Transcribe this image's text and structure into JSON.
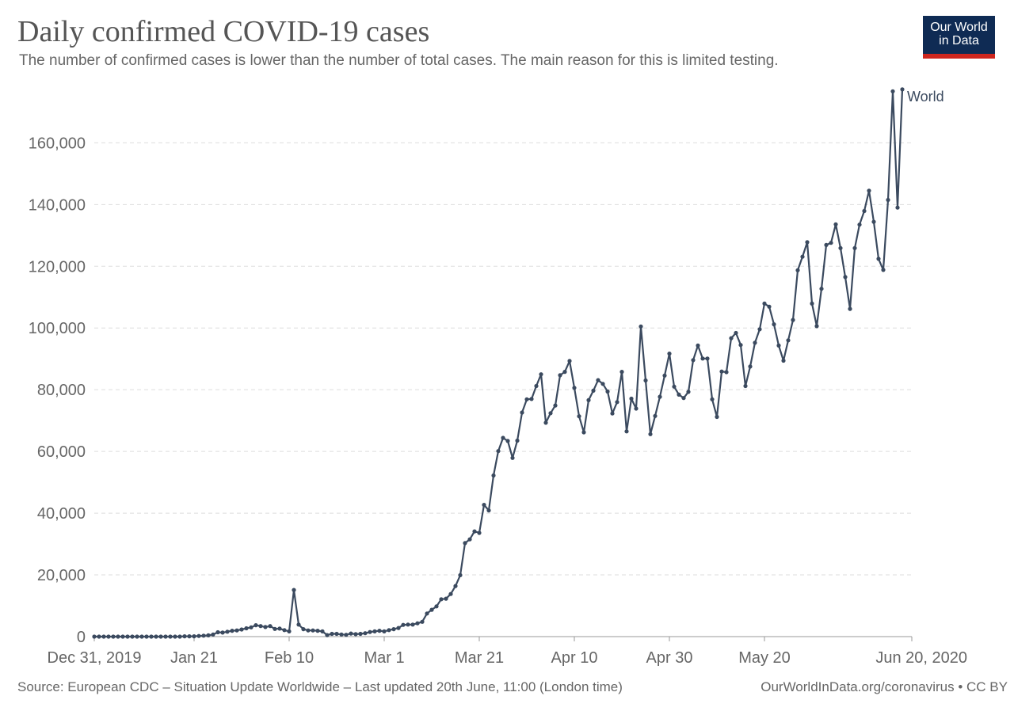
{
  "header": {
    "title": "Daily confirmed COVID-19 cases",
    "subtitle": "The number of confirmed cases is lower than the number of total cases. The main reason for this is limited testing."
  },
  "logo": {
    "line1": "Our World",
    "line2": "in Data",
    "background_color": "#0f2b54",
    "accent_color": "#ce261e"
  },
  "footer": {
    "source": "Source: European CDC – Situation Update Worldwide – Last updated 20th June, 11:00 (London time)",
    "url": "OurWorldInData.org/coronavirus • CC BY"
  },
  "colors": {
    "series": "#3b4a5f",
    "grid": "#dddddd",
    "axis_text": "#666666"
  },
  "chart_data": {
    "type": "line",
    "title": "Daily confirmed COVID-19 cases",
    "subtitle": "The number of confirmed cases is lower than the number of total cases. The main reason for this is limited testing.",
    "x_start_date": "2019-12-31",
    "x_end_date": "2020-06-20",
    "x_ticks": [
      {
        "date": "2019-12-31",
        "label": "Dec 31, 2019"
      },
      {
        "date": "2020-01-21",
        "label": "Jan 21"
      },
      {
        "date": "2020-02-10",
        "label": "Feb 10"
      },
      {
        "date": "2020-03-01",
        "label": "Mar 1"
      },
      {
        "date": "2020-03-21",
        "label": "Mar 21"
      },
      {
        "date": "2020-04-10",
        "label": "Apr 10"
      },
      {
        "date": "2020-04-30",
        "label": "Apr 30"
      },
      {
        "date": "2020-05-20",
        "label": "May 20"
      },
      {
        "date": "2020-06-20",
        "label": "Jun 20, 2020"
      }
    ],
    "y_ticks": [
      0,
      20000,
      40000,
      60000,
      80000,
      100000,
      120000,
      140000,
      160000
    ],
    "y_tick_labels": [
      "0",
      "20,000",
      "40,000",
      "60,000",
      "80,000",
      "100,000",
      "120,000",
      "140,000",
      "160,000"
    ],
    "ylim": [
      0,
      176000
    ],
    "grid": true,
    "legend": "end-of-line label",
    "series": [
      {
        "name": "World",
        "values": [
          {
            "date": "2019-12-31",
            "value": 0
          },
          {
            "date": "2020-01-01",
            "value": 0
          },
          {
            "date": "2020-01-02",
            "value": 0
          },
          {
            "date": "2020-01-03",
            "value": 0
          },
          {
            "date": "2020-01-04",
            "value": 0
          },
          {
            "date": "2020-01-05",
            "value": 0
          },
          {
            "date": "2020-01-06",
            "value": 0
          },
          {
            "date": "2020-01-07",
            "value": 0
          },
          {
            "date": "2020-01-08",
            "value": 0
          },
          {
            "date": "2020-01-09",
            "value": 0
          },
          {
            "date": "2020-01-10",
            "value": 0
          },
          {
            "date": "2020-01-11",
            "value": 0
          },
          {
            "date": "2020-01-12",
            "value": 0
          },
          {
            "date": "2020-01-13",
            "value": 0
          },
          {
            "date": "2020-01-14",
            "value": 0
          },
          {
            "date": "2020-01-15",
            "value": 0
          },
          {
            "date": "2020-01-16",
            "value": 0
          },
          {
            "date": "2020-01-17",
            "value": 0
          },
          {
            "date": "2020-01-18",
            "value": 0
          },
          {
            "date": "2020-01-19",
            "value": 100
          },
          {
            "date": "2020-01-20",
            "value": 100
          },
          {
            "date": "2020-01-21",
            "value": 100
          },
          {
            "date": "2020-01-22",
            "value": 200
          },
          {
            "date": "2020-01-23",
            "value": 300
          },
          {
            "date": "2020-01-24",
            "value": 400
          },
          {
            "date": "2020-01-25",
            "value": 700
          },
          {
            "date": "2020-01-26",
            "value": 1400
          },
          {
            "date": "2020-01-27",
            "value": 1300
          },
          {
            "date": "2020-01-28",
            "value": 1600
          },
          {
            "date": "2020-01-29",
            "value": 1900
          },
          {
            "date": "2020-01-30",
            "value": 2000
          },
          {
            "date": "2020-01-31",
            "value": 2300
          },
          {
            "date": "2020-02-01",
            "value": 2700
          },
          {
            "date": "2020-02-02",
            "value": 3000
          },
          {
            "date": "2020-02-03",
            "value": 3700
          },
          {
            "date": "2020-02-04",
            "value": 3400
          },
          {
            "date": "2020-02-05",
            "value": 3100
          },
          {
            "date": "2020-02-06",
            "value": 3400
          },
          {
            "date": "2020-02-07",
            "value": 2500
          },
          {
            "date": "2020-02-08",
            "value": 2600
          },
          {
            "date": "2020-02-09",
            "value": 2100
          },
          {
            "date": "2020-02-10",
            "value": 1700
          },
          {
            "date": "2020-02-11",
            "value": 15100
          },
          {
            "date": "2020-02-12",
            "value": 3900
          },
          {
            "date": "2020-02-13",
            "value": 2400
          },
          {
            "date": "2020-02-14",
            "value": 2000
          },
          {
            "date": "2020-02-15",
            "value": 2000
          },
          {
            "date": "2020-02-16",
            "value": 1900
          },
          {
            "date": "2020-02-17",
            "value": 1700
          },
          {
            "date": "2020-02-18",
            "value": 500
          },
          {
            "date": "2020-02-19",
            "value": 900
          },
          {
            "date": "2020-02-20",
            "value": 900
          },
          {
            "date": "2020-02-21",
            "value": 700
          },
          {
            "date": "2020-02-22",
            "value": 600
          },
          {
            "date": "2020-02-23",
            "value": 1000
          },
          {
            "date": "2020-02-24",
            "value": 800
          },
          {
            "date": "2020-02-25",
            "value": 900
          },
          {
            "date": "2020-02-26",
            "value": 1100
          },
          {
            "date": "2020-02-27",
            "value": 1500
          },
          {
            "date": "2020-02-28",
            "value": 1700
          },
          {
            "date": "2020-02-29",
            "value": 1900
          },
          {
            "date": "2020-03-01",
            "value": 1700
          },
          {
            "date": "2020-03-02",
            "value": 2100
          },
          {
            "date": "2020-03-03",
            "value": 2400
          },
          {
            "date": "2020-03-04",
            "value": 2800
          },
          {
            "date": "2020-03-05",
            "value": 3800
          },
          {
            "date": "2020-03-06",
            "value": 3900
          },
          {
            "date": "2020-03-07",
            "value": 3900
          },
          {
            "date": "2020-03-08",
            "value": 4300
          },
          {
            "date": "2020-03-09",
            "value": 4800
          },
          {
            "date": "2020-03-10",
            "value": 7500
          },
          {
            "date": "2020-03-11",
            "value": 8700
          },
          {
            "date": "2020-03-12",
            "value": 9800
          },
          {
            "date": "2020-03-13",
            "value": 12100
          },
          {
            "date": "2020-03-14",
            "value": 12300
          },
          {
            "date": "2020-03-15",
            "value": 13800
          },
          {
            "date": "2020-03-16",
            "value": 16400
          },
          {
            "date": "2020-03-17",
            "value": 19900
          },
          {
            "date": "2020-03-18",
            "value": 30300
          },
          {
            "date": "2020-03-19",
            "value": 31500
          },
          {
            "date": "2020-03-20",
            "value": 34100
          },
          {
            "date": "2020-03-21",
            "value": 33600
          },
          {
            "date": "2020-03-22",
            "value": 42700
          },
          {
            "date": "2020-03-23",
            "value": 40900
          },
          {
            "date": "2020-03-24",
            "value": 52200
          },
          {
            "date": "2020-03-25",
            "value": 60100
          },
          {
            "date": "2020-03-26",
            "value": 64400
          },
          {
            "date": "2020-03-27",
            "value": 63400
          },
          {
            "date": "2020-03-28",
            "value": 57900
          },
          {
            "date": "2020-03-29",
            "value": 63500
          },
          {
            "date": "2020-03-30",
            "value": 72600
          },
          {
            "date": "2020-03-31",
            "value": 76900
          },
          {
            "date": "2020-04-01",
            "value": 77000
          },
          {
            "date": "2020-04-02",
            "value": 81200
          },
          {
            "date": "2020-04-03",
            "value": 85000
          },
          {
            "date": "2020-04-04",
            "value": 69300
          },
          {
            "date": "2020-04-05",
            "value": 72400
          },
          {
            "date": "2020-04-06",
            "value": 74900
          },
          {
            "date": "2020-04-07",
            "value": 84700
          },
          {
            "date": "2020-04-08",
            "value": 85800
          },
          {
            "date": "2020-04-09",
            "value": 89300
          },
          {
            "date": "2020-04-10",
            "value": 80600
          },
          {
            "date": "2020-04-11",
            "value": 71400
          },
          {
            "date": "2020-04-12",
            "value": 66200
          },
          {
            "date": "2020-04-13",
            "value": 76600
          },
          {
            "date": "2020-04-14",
            "value": 79700
          },
          {
            "date": "2020-04-15",
            "value": 83100
          },
          {
            "date": "2020-04-16",
            "value": 81900
          },
          {
            "date": "2020-04-17",
            "value": 79400
          },
          {
            "date": "2020-04-18",
            "value": 72300
          },
          {
            "date": "2020-04-19",
            "value": 76000
          },
          {
            "date": "2020-04-20",
            "value": 85800
          },
          {
            "date": "2020-04-21",
            "value": 66500
          },
          {
            "date": "2020-04-22",
            "value": 77100
          },
          {
            "date": "2020-04-23",
            "value": 73900
          },
          {
            "date": "2020-04-24",
            "value": 100500
          },
          {
            "date": "2020-04-25",
            "value": 83000
          },
          {
            "date": "2020-04-26",
            "value": 65600
          },
          {
            "date": "2020-04-27",
            "value": 71500
          },
          {
            "date": "2020-04-28",
            "value": 77700
          },
          {
            "date": "2020-04-29",
            "value": 84600
          },
          {
            "date": "2020-04-30",
            "value": 91700
          },
          {
            "date": "2020-05-01",
            "value": 81000
          },
          {
            "date": "2020-05-02",
            "value": 78400
          },
          {
            "date": "2020-05-03",
            "value": 77300
          },
          {
            "date": "2020-05-04",
            "value": 79300
          },
          {
            "date": "2020-05-05",
            "value": 89600
          },
          {
            "date": "2020-05-06",
            "value": 94300
          },
          {
            "date": "2020-05-07",
            "value": 90100
          },
          {
            "date": "2020-05-08",
            "value": 90100
          },
          {
            "date": "2020-05-09",
            "value": 76900
          },
          {
            "date": "2020-05-10",
            "value": 71200
          },
          {
            "date": "2020-05-11",
            "value": 85900
          },
          {
            "date": "2020-05-12",
            "value": 85700
          },
          {
            "date": "2020-05-13",
            "value": 96700
          },
          {
            "date": "2020-05-14",
            "value": 98400
          },
          {
            "date": "2020-05-15",
            "value": 94500
          },
          {
            "date": "2020-05-16",
            "value": 81200
          },
          {
            "date": "2020-05-17",
            "value": 87500
          },
          {
            "date": "2020-05-18",
            "value": 95200
          },
          {
            "date": "2020-05-19",
            "value": 99600
          },
          {
            "date": "2020-05-20",
            "value": 107900
          },
          {
            "date": "2020-05-21",
            "value": 106900
          },
          {
            "date": "2020-05-22",
            "value": 101200
          },
          {
            "date": "2020-05-23",
            "value": 94300
          },
          {
            "date": "2020-05-24",
            "value": 89400
          },
          {
            "date": "2020-05-25",
            "value": 96000
          },
          {
            "date": "2020-05-26",
            "value": 102600
          },
          {
            "date": "2020-05-27",
            "value": 118700
          },
          {
            "date": "2020-05-28",
            "value": 123100
          },
          {
            "date": "2020-05-29",
            "value": 127800
          },
          {
            "date": "2020-05-30",
            "value": 107900
          },
          {
            "date": "2020-05-31",
            "value": 100600
          },
          {
            "date": "2020-06-01",
            "value": 112700
          },
          {
            "date": "2020-06-02",
            "value": 126900
          },
          {
            "date": "2020-06-03",
            "value": 127600
          },
          {
            "date": "2020-06-04",
            "value": 133600
          },
          {
            "date": "2020-06-05",
            "value": 125900
          },
          {
            "date": "2020-06-06",
            "value": 116500
          },
          {
            "date": "2020-06-07",
            "value": 106200
          },
          {
            "date": "2020-06-08",
            "value": 125900
          },
          {
            "date": "2020-06-09",
            "value": 133500
          },
          {
            "date": "2020-06-10",
            "value": 137900
          },
          {
            "date": "2020-06-11",
            "value": 144500
          },
          {
            "date": "2020-06-12",
            "value": 134400
          },
          {
            "date": "2020-06-13",
            "value": 122400
          },
          {
            "date": "2020-06-14",
            "value": 118800
          },
          {
            "date": "2020-06-15",
            "value": 141500
          },
          {
            "date": "2020-06-16",
            "value": 176700
          },
          {
            "date": "2020-06-17",
            "value": 139000
          },
          {
            "date": "2020-06-18",
            "value": 177300
          }
        ]
      }
    ]
  }
}
